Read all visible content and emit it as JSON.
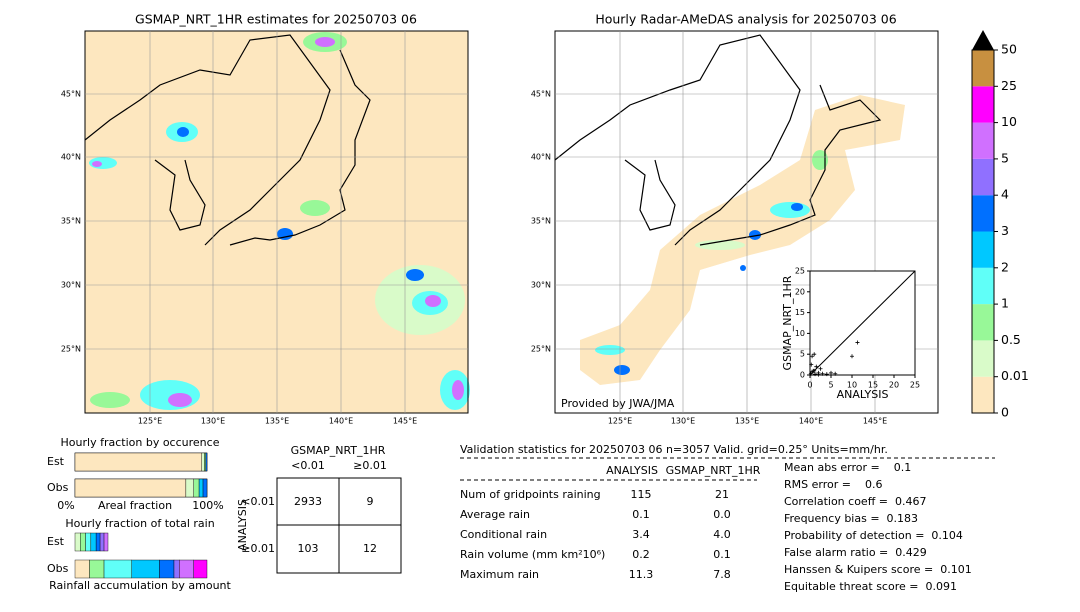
{
  "left_map": {
    "title": "GSMAP_NRT_1HR estimates for 20250703 06",
    "lat_labels": [
      "45°N",
      "40°N",
      "35°N",
      "30°N",
      "25°N"
    ],
    "lon_labels": [
      "125°E",
      "130°E",
      "135°E",
      "140°E",
      "145°E"
    ]
  },
  "right_map": {
    "title": "Hourly Radar-AMeDAS analysis for 20250703 06",
    "credit": "Provided by JWA/JMA",
    "lat_labels": [
      "45°N",
      "40°N",
      "35°N",
      "30°N",
      "25°N"
    ],
    "lon_labels": [
      "125°E",
      "130°E",
      "135°E",
      "140°E",
      "145°E"
    ]
  },
  "scatter": {
    "xlabel": "ANALYSIS",
    "ylabel": "GSMAP_NRT_1HR",
    "xlim": [
      0,
      25
    ],
    "ylim": [
      0,
      25
    ],
    "xticks": [
      0,
      5,
      10,
      15,
      20,
      25
    ],
    "yticks": [
      0,
      5,
      10,
      15,
      20,
      25
    ],
    "x": [
      0.2,
      0.5,
      0.8,
      1,
      1.2,
      1.5,
      2,
      2.5,
      3,
      4,
      5,
      10,
      11.3,
      0.3,
      1,
      2,
      6,
      0.5
    ],
    "y": [
      0.3,
      4.5,
      1,
      5,
      0.2,
      2,
      0.5,
      1.5,
      0.3,
      0.2,
      0.5,
      4.5,
      7.8,
      2.5,
      1,
      0.1,
      0.3,
      0.8
    ]
  },
  "colorbar": {
    "levels": [
      0,
      0.01,
      0.5,
      1,
      2,
      3,
      4,
      5,
      10,
      25,
      50
    ],
    "colors": [
      "#fde7bf",
      "#d9fbc9",
      "#98f898",
      "#60fff8",
      "#00c8ff",
      "#0070ff",
      "#9070ff",
      "#d070ff",
      "#ff00ff",
      "#c89040"
    ]
  },
  "occurrence": {
    "title": "Hourly fraction by occurence",
    "axis_labels": [
      "0%",
      "Areal fraction",
      "100%"
    ],
    "rows": [
      {
        "label": "Est",
        "segments": [
          0.96,
          0.02,
          0.01,
          0.01
        ],
        "colors": [
          "#fde7bf",
          "#d9fbc9",
          "#98f898",
          "#0070ff"
        ]
      },
      {
        "label": "Obs",
        "segments": [
          0.84,
          0.06,
          0.04,
          0.03,
          0.03
        ],
        "colors": [
          "#fde7bf",
          "#d9fbc9",
          "#98f898",
          "#00c8ff",
          "#0070ff"
        ]
      }
    ]
  },
  "total_rain": {
    "title": "Hourly fraction of total rain",
    "xlabel": "Rainfall accumulation by amount",
    "rows": [
      {
        "label": "Est",
        "segments": [
          0.04,
          0.04,
          0.04,
          0.04,
          0.03,
          0.03,
          0.03
        ],
        "colors": [
          "#d9fbc9",
          "#98f898",
          "#60fff8",
          "#00c8ff",
          "#0070ff",
          "#9070ff",
          "#d070ff"
        ]
      },
      {
        "label": "Obs",
        "segments": [
          0.11,
          0.11,
          0.21,
          0.21,
          0.11,
          0.04,
          0.11,
          0.1
        ],
        "colors": [
          "#fde7bf",
          "#98f898",
          "#60fff8",
          "#00c8ff",
          "#0070ff",
          "#9070ff",
          "#d070ff",
          "#ff00ff"
        ]
      }
    ]
  },
  "contingency": {
    "header": "GSMAP_NRT_1HR",
    "columns": [
      "<0.01",
      "≥0.01"
    ],
    "row_title": "ANALYSIS",
    "rows": [
      "<0.01",
      "≥0.01"
    ],
    "cells": [
      [
        2933,
        9
      ],
      [
        103,
        12
      ]
    ]
  },
  "stats": {
    "title": "Validation statistics for 20250703 06  n=3057 Valid. grid=0.25° Units=mm/hr.",
    "columns": [
      "ANALYSIS",
      "GSMAP_NRT_1HR"
    ],
    "rows": [
      [
        "Num of gridpoints raining",
        "115",
        "21"
      ],
      [
        "Average rain",
        "0.1",
        "0.0"
      ],
      [
        "Conditional rain",
        "3.4",
        "4.0"
      ],
      [
        "Rain volume (mm km²10⁶)",
        "0.2",
        "0.1"
      ],
      [
        "Maximum rain",
        "11.3",
        "7.8"
      ]
    ],
    "scores": [
      "Mean abs error =    0.1",
      "RMS error =    0.6",
      "Correlation coeff =  0.467",
      "Frequency bias =  0.183",
      "Probability of detection =  0.104",
      "False alarm ratio =  0.429",
      "Hanssen & Kuipers score =  0.101",
      "Equitable threat score =  0.091"
    ]
  }
}
